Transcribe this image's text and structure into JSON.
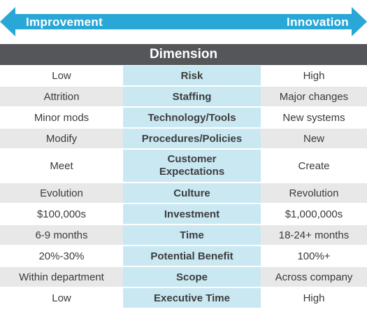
{
  "arrow": {
    "left_label": "Improvement",
    "right_label": "Innovation",
    "color": "#29a8d8"
  },
  "header": {
    "title": "Dimension",
    "background": "#555659"
  },
  "rows": [
    {
      "left": "Low",
      "dimension": "Risk",
      "right": "High"
    },
    {
      "left": "Attrition",
      "dimension": "Staffing",
      "right": "Major changes"
    },
    {
      "left": "Minor mods",
      "dimension": "Technology/Tools",
      "right": "New systems"
    },
    {
      "left": "Modify",
      "dimension": "Procedures/Policies",
      "right": "New"
    },
    {
      "left": "Meet",
      "dimension_line1": "Customer",
      "dimension_line2": "Expectations",
      "right": "Create"
    },
    {
      "left": "Evolution",
      "dimension": "Culture",
      "right": "Revolution"
    },
    {
      "left": "$100,000s",
      "dimension": "Investment",
      "right": "$1,000,000s"
    },
    {
      "left": "6-9 months",
      "dimension": "Time",
      "right": "18-24+ months"
    },
    {
      "left": "20%-30%",
      "dimension": "Potential Benefit",
      "right": "100%+"
    },
    {
      "left": "Within department",
      "dimension": "Scope",
      "right": "Across company"
    },
    {
      "left": "Low",
      "dimension": "Executive Time",
      "right": "High"
    }
  ],
  "colors": {
    "middle_column": "#c9e8f2",
    "shaded_row": "#e8e8e8"
  }
}
